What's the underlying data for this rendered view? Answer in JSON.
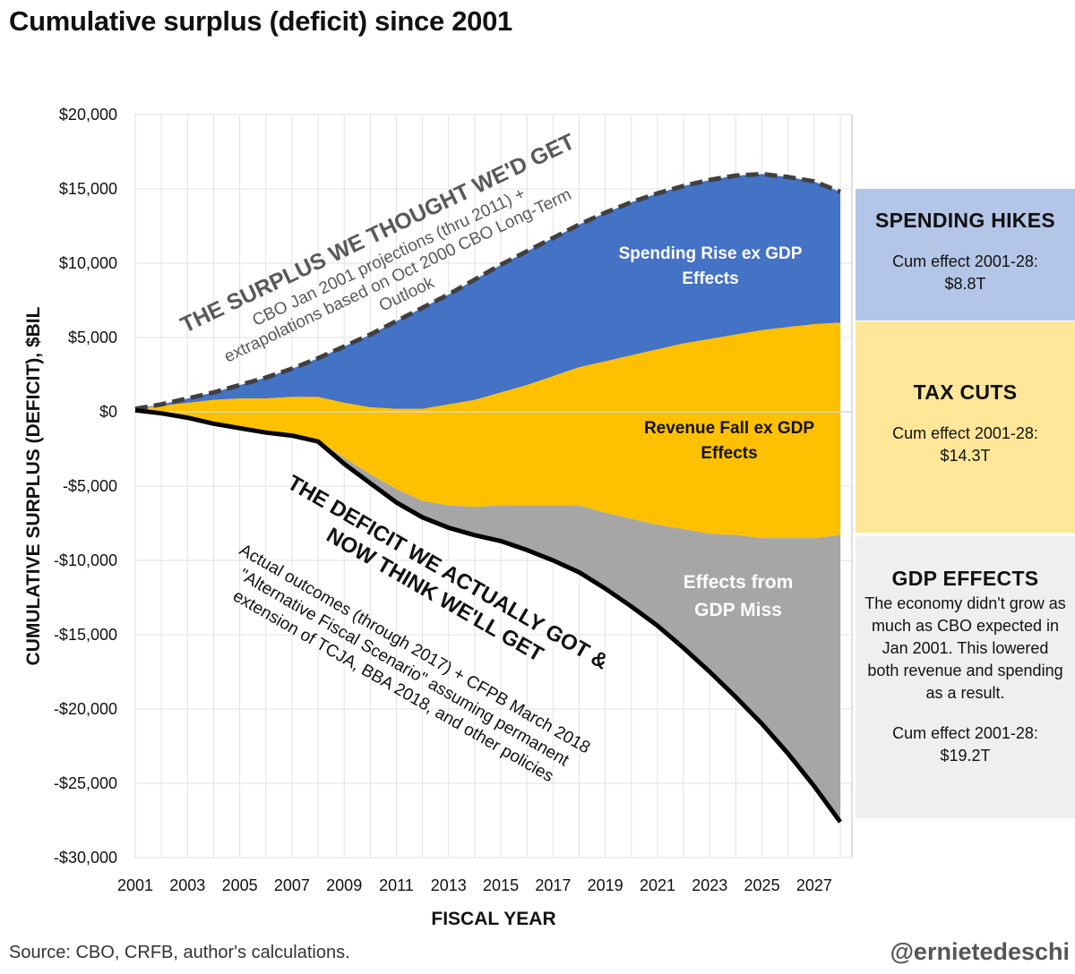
{
  "title": "Cumulative surplus (deficit) since 2001",
  "source": "Source: CBO, CRFB, author's calculations.",
  "handle": "@ernietedeschi",
  "colors": {
    "spending": "#4472c4",
    "tax": "#ffc000",
    "gdp": "#a6a6a6",
    "actual_line": "#000000",
    "projection_line": "#404040",
    "gridline": "#e2e2e2"
  },
  "annotations": {
    "surplus_title": "THE SURPLUS WE THOUGHT WE'D GET",
    "surplus_desc": [
      "CBO Jan 2001 projections (thru 2011) +",
      "extrapolations based on Oct 2000 CBO Long-Term",
      "Outlook"
    ],
    "deficit_title": [
      "THE DEFICIT WE ACTUALLY GOT &",
      "NOW THINK WE'LL GET"
    ],
    "deficit_desc": [
      "Actual outcomes (through 2017) + CFPB March 2018",
      "\"Alternative Fiscal Scenario\" assuming permanent",
      "extension of  TCJA, BBA 2018, and other policies"
    ],
    "spending_label": [
      "Spending Rise ex GDP",
      "Effects"
    ],
    "tax_label": [
      "Revenue Fall ex GDP",
      "Effects"
    ],
    "gdp_label": [
      "Effects from",
      "GDP Miss"
    ]
  },
  "side_panels": {
    "spending": {
      "title": "SPENDING HIKES",
      "cum_label": "Cum effect 2001-28:",
      "cum_value": "$8.8T"
    },
    "tax": {
      "title": "TAX CUTS",
      "cum_label": "Cum effect 2001-28:",
      "cum_value": "$14.3T"
    },
    "gdp": {
      "title": "GDP EFFECTS",
      "desc": "The economy didn't grow as much as CBO expected in Jan 2001. This lowered both revenue and spending as a result.",
      "cum_label": "Cum effect 2001-28:",
      "cum_value": "$19.2T"
    }
  },
  "chart_data": {
    "type": "area",
    "xlabel": "FISCAL YEAR",
    "ylabel": "CUMULATIVE SURPLUS (DEFICIT), $BIL",
    "xlim": [
      2001,
      2028
    ],
    "ylim": [
      -30000,
      20000
    ],
    "x_ticks": [
      2001,
      2003,
      2005,
      2007,
      2009,
      2011,
      2013,
      2015,
      2017,
      2019,
      2021,
      2023,
      2025,
      2027
    ],
    "y_ticks": [
      20000,
      15000,
      10000,
      5000,
      0,
      -5000,
      -10000,
      -15000,
      -20000,
      -25000,
      -30000
    ],
    "y_tick_labels": [
      "$20,000",
      "$15,000",
      "$10,000",
      "$5,000",
      "$0",
      "-$5,000",
      "-$10,000",
      "-$15,000",
      "-$20,000",
      "-$25,000",
      "-$30,000"
    ],
    "grid": true,
    "x": [
      2001,
      2002,
      2003,
      2004,
      2005,
      2006,
      2007,
      2008,
      2009,
      2010,
      2011,
      2012,
      2013,
      2014,
      2015,
      2016,
      2017,
      2018,
      2019,
      2020,
      2021,
      2022,
      2023,
      2024,
      2025,
      2026,
      2027,
      2028
    ],
    "series": [
      {
        "name": "THE SURPLUS WE THOUGHT WE'D GET",
        "style": "dashed",
        "values": [
          200,
          500,
          900,
          1300,
          1800,
          2300,
          2900,
          3600,
          4400,
          5200,
          6100,
          7000,
          7900,
          8900,
          9900,
          10800,
          11700,
          12600,
          13400,
          14100,
          14700,
          15200,
          15600,
          15900,
          16000,
          15800,
          15500,
          14800
        ]
      },
      {
        "name": "THE DEFICIT WE ACTUALLY GOT & NOW THINK WE'LL GET",
        "style": "solid",
        "values": [
          100,
          -100,
          -400,
          -800,
          -1100,
          -1400,
          -1600,
          -2000,
          -3500,
          -4800,
          -6100,
          -7100,
          -7800,
          -8300,
          -8700,
          -9300,
          -10000,
          -10800,
          -11900,
          -13100,
          -14400,
          -15900,
          -17500,
          -19200,
          -21000,
          -23000,
          -25200,
          -27600
        ]
      },
      {
        "name": "Spending Rise ex GDP Effects",
        "role": "stack",
        "upper": "THE SURPLUS WE THOUGHT WE'D GET",
        "lower_values": [
          200,
          400,
          600,
          800,
          900,
          900,
          1000,
          1000,
          600,
          300,
          200,
          200,
          500,
          800,
          1300,
          1800,
          2400,
          3000,
          3400,
          3800,
          4200,
          4600,
          4900,
          5200,
          5500,
          5700,
          5900,
          6000
        ]
      },
      {
        "name": "Revenue Fall ex GDP Effects",
        "role": "stack",
        "lower_values": [
          100,
          -100,
          -400,
          -700,
          -1000,
          -1300,
          -1500,
          -1900,
          -3100,
          -4200,
          -5200,
          -6000,
          -6300,
          -6400,
          -6300,
          -6300,
          -6300,
          -6300,
          -6800,
          -7200,
          -7600,
          -7900,
          -8200,
          -8300,
          -8500,
          -8500,
          -8500,
          -8300
        ]
      },
      {
        "name": "Effects from GDP Miss",
        "role": "stack",
        "lower": "THE DEFICIT WE ACTUALLY GOT & NOW THINK WE'LL GET"
      }
    ]
  }
}
